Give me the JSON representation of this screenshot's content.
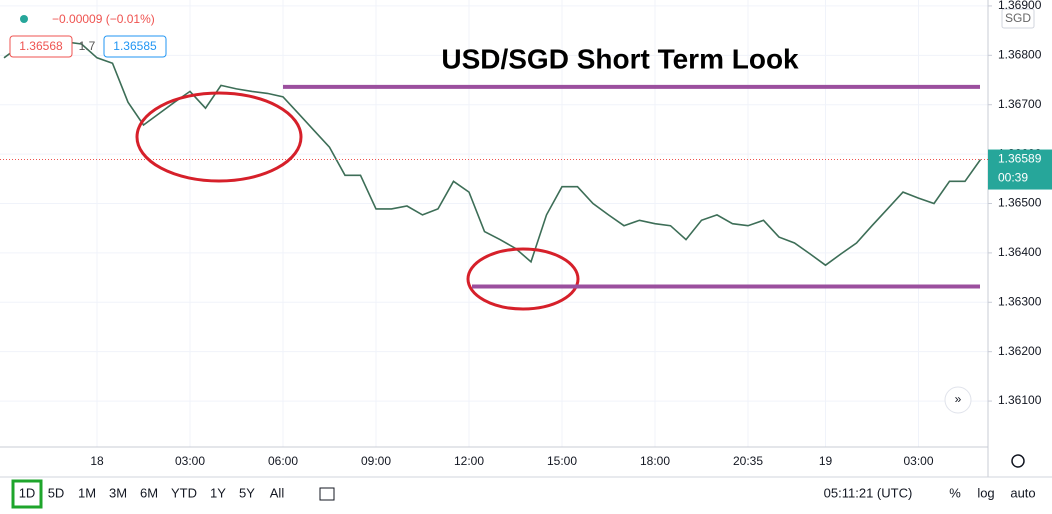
{
  "chart_data": {
    "type": "line",
    "title": "USD/SGD Short Term Look",
    "header": {
      "change": "−0.00009 (−0.01%)",
      "bid": "1.36568",
      "spread": "1.7",
      "ask": "1.36585"
    },
    "currency": "SGD",
    "countdown": "00:39",
    "categories": [
      null,
      null,
      null,
      null,
      null,
      null,
      "18",
      null,
      null,
      null,
      null,
      null,
      "03:00",
      null,
      null,
      null,
      null,
      null,
      "06:00",
      null,
      null,
      null,
      null,
      null,
      "09:00",
      null,
      null,
      null,
      null,
      null,
      "12:00",
      null,
      null,
      null,
      null,
      null,
      "15:00",
      null,
      null,
      null,
      null,
      null,
      "18:00",
      null,
      null,
      null,
      null,
      null,
      "20:35",
      null,
      null,
      null,
      null,
      "19",
      null,
      null,
      null,
      null,
      null,
      "03:00",
      null,
      null,
      null,
      null
    ],
    "series": [
      {
        "name": "USD/SGD",
        "color": "#3d6e57",
        "values": [
          1.36795,
          1.36818,
          1.36814,
          1.36809,
          1.36827,
          1.36823,
          1.36795,
          1.36784,
          1.36705,
          1.36659,
          1.36682,
          1.36705,
          1.36727,
          1.36693,
          1.36739,
          1.36732,
          1.36727,
          1.36723,
          1.36716,
          1.36682,
          1.36648,
          1.36614,
          1.36557,
          1.36557,
          1.36489,
          1.36489,
          1.36495,
          1.36477,
          1.36489,
          1.36545,
          1.36523,
          1.36443,
          1.36427,
          1.36409,
          1.36382,
          1.36477,
          1.36534,
          1.36534,
          1.365,
          1.36477,
          1.36455,
          1.36466,
          1.36459,
          1.36455,
          1.36427,
          1.36466,
          1.36477,
          1.36459,
          1.36455,
          1.36466,
          1.36432,
          1.3642,
          1.36398,
          1.36375,
          1.36398,
          1.3642,
          1.36455,
          1.36489,
          1.36523,
          1.36511,
          1.365,
          1.36545,
          1.36545,
          1.36589
        ]
      }
    ],
    "ylim": [
      1.36007,
      1.36912
    ],
    "yticks": [
      {
        "value": 1.361,
        "label": "1.36100"
      },
      {
        "value": 1.362,
        "label": "1.36200"
      },
      {
        "value": 1.363,
        "label": "1.36300"
      },
      {
        "value": 1.364,
        "label": "1.36400"
      },
      {
        "value": 1.365,
        "label": "1.36500"
      },
      {
        "value": 1.366,
        "label": "1.36600"
      },
      {
        "value": 1.367,
        "label": "1.36700"
      },
      {
        "value": 1.368,
        "label": "1.36800"
      },
      {
        "value": 1.369,
        "label": "1.36900"
      }
    ],
    "grid": true,
    "levels": [
      {
        "value": 1.36736,
        "color": "#9b4f9e"
      },
      {
        "value": 1.36332,
        "color": "#9b4f9e"
      }
    ]
  },
  "toolbar": {
    "ranges": [
      "1D",
      "5D",
      "1M",
      "3M",
      "6M",
      "YTD",
      "1Y",
      "5Y",
      "All"
    ],
    "clock": "05:11:21 (UTC)",
    "options": [
      "%",
      "log",
      "auto"
    ]
  }
}
